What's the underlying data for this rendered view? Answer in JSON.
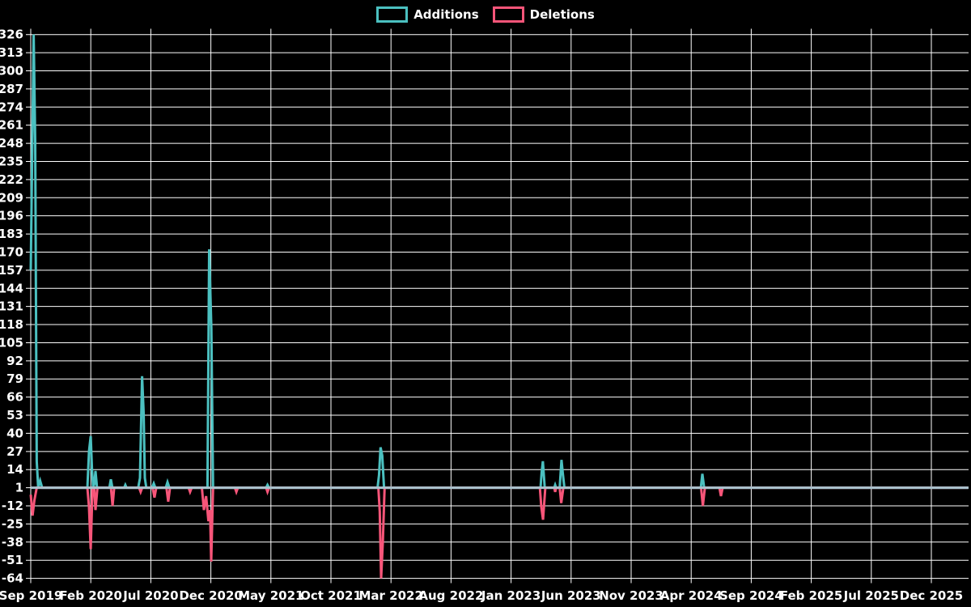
{
  "legend": {
    "additions_label": "Additions",
    "deletions_label": "Deletions"
  },
  "chart_data": {
    "type": "line",
    "title": "",
    "legend_position": "top-center",
    "background_color": "#000000",
    "grid": {
      "show": true,
      "color": "#ffffff"
    },
    "text_color": "#ffffff",
    "baseline_overlay": {
      "value": 1,
      "color": "#a9c3ce"
    },
    "y_axis": {
      "min": -64,
      "max": 326,
      "tick_step": 13,
      "tick_labels": [
        "326",
        "313",
        "300",
        "287",
        "274",
        "261",
        "248",
        "235",
        "222",
        "209",
        "196",
        "183",
        "170",
        "157",
        "144",
        "131",
        "118",
        "105",
        "92",
        "79",
        "66",
        "53",
        "40",
        "27",
        "14",
        "1",
        "-12",
        "-25",
        "-38",
        "-51",
        "-64"
      ]
    },
    "x_axis": {
      "tick_labels": [
        "Sep 2019",
        "Feb 2020",
        "Jul 2020",
        "Dec 2020",
        "May 2021",
        "Oct 2021",
        "Mar 2022",
        "Aug 2022",
        "Jan 2023",
        "Jun 2023",
        "Nov 2023",
        "Apr 2024",
        "Sep 2024",
        "Feb 2025",
        "Jul 2025",
        "Dec 2025"
      ],
      "months_per_tick": 5
    },
    "series": [
      {
        "name": "Additions",
        "color": "#4bc0c0",
        "points": [
          [
            0,
            157
          ],
          [
            0.24,
            326
          ],
          [
            0.37,
            250
          ],
          [
            0.5,
            20
          ],
          [
            0.62,
            1
          ],
          [
            0.78,
            6
          ],
          [
            0.95,
            1
          ],
          [
            4.72,
            1
          ],
          [
            4.85,
            27
          ],
          [
            4.99,
            38
          ],
          [
            5.1,
            14
          ],
          [
            5.2,
            1
          ],
          [
            5.3,
            4
          ],
          [
            5.39,
            13
          ],
          [
            5.52,
            1
          ],
          [
            6.55,
            1
          ],
          [
            6.67,
            7
          ],
          [
            6.8,
            1
          ],
          [
            7.78,
            1
          ],
          [
            7.88,
            3
          ],
          [
            7.98,
            1
          ],
          [
            8.95,
            1
          ],
          [
            9.1,
            8
          ],
          [
            9.27,
            81
          ],
          [
            9.4,
            55
          ],
          [
            9.5,
            8
          ],
          [
            9.62,
            1
          ],
          [
            10.1,
            1
          ],
          [
            10.24,
            4
          ],
          [
            10.38,
            1
          ],
          [
            11.25,
            1
          ],
          [
            11.39,
            5
          ],
          [
            11.54,
            1
          ],
          [
            14.72,
            1
          ],
          [
            14.86,
            172
          ],
          [
            15.04,
            115
          ],
          [
            15.18,
            1
          ],
          [
            19.6,
            1
          ],
          [
            19.72,
            3
          ],
          [
            19.85,
            1
          ],
          [
            28.88,
            1
          ],
          [
            29.0,
            10
          ],
          [
            29.13,
            30
          ],
          [
            29.27,
            24
          ],
          [
            29.42,
            1
          ],
          [
            42.45,
            1
          ],
          [
            42.55,
            12
          ],
          [
            42.65,
            20
          ],
          [
            42.8,
            1
          ],
          [
            43.6,
            1
          ],
          [
            43.67,
            3
          ],
          [
            43.75,
            1
          ],
          [
            44.05,
            1
          ],
          [
            44.2,
            21
          ],
          [
            44.3,
            12
          ],
          [
            44.44,
            1
          ],
          [
            55.8,
            1
          ],
          [
            55.93,
            11
          ],
          [
            56.08,
            1
          ],
          [
            78.05,
            1
          ]
        ]
      },
      {
        "name": "Deletions",
        "color": "#f75579",
        "points": [
          [
            0,
            -4
          ],
          [
            0.15,
            -19
          ],
          [
            0.3,
            -8
          ],
          [
            0.5,
            1
          ],
          [
            4.72,
            1
          ],
          [
            4.85,
            -13
          ],
          [
            4.99,
            -43
          ],
          [
            5.14,
            1
          ],
          [
            5.28,
            1
          ],
          [
            5.39,
            -15
          ],
          [
            5.55,
            1
          ],
          [
            6.68,
            1
          ],
          [
            6.81,
            -12
          ],
          [
            6.95,
            1
          ],
          [
            9.02,
            1
          ],
          [
            9.15,
            -2
          ],
          [
            9.28,
            1
          ],
          [
            10.15,
            1
          ],
          [
            10.3,
            -6
          ],
          [
            10.45,
            1
          ],
          [
            11.3,
            1
          ],
          [
            11.45,
            -9
          ],
          [
            11.6,
            1
          ],
          [
            13.15,
            1
          ],
          [
            13.27,
            -2
          ],
          [
            13.4,
            1
          ],
          [
            14.25,
            1
          ],
          [
            14.42,
            -15
          ],
          [
            14.6,
            -5
          ],
          [
            14.8,
            -23
          ],
          [
            14.93,
            -15
          ],
          [
            15.03,
            -52
          ],
          [
            15.18,
            1
          ],
          [
            17.0,
            1
          ],
          [
            17.12,
            -2
          ],
          [
            17.25,
            1
          ],
          [
            19.6,
            1
          ],
          [
            19.72,
            -2
          ],
          [
            19.85,
            1
          ],
          [
            28.95,
            1
          ],
          [
            29.06,
            -16
          ],
          [
            29.18,
            -64
          ],
          [
            29.32,
            -38
          ],
          [
            29.47,
            1
          ],
          [
            42.4,
            1
          ],
          [
            42.52,
            -13
          ],
          [
            42.66,
            -22
          ],
          [
            42.85,
            1
          ],
          [
            43.6,
            1
          ],
          [
            43.67,
            -2
          ],
          [
            43.75,
            1
          ],
          [
            44.05,
            1
          ],
          [
            44.18,
            -10
          ],
          [
            44.35,
            1
          ],
          [
            55.82,
            1
          ],
          [
            55.97,
            -12
          ],
          [
            56.14,
            1
          ],
          [
            57.35,
            1
          ],
          [
            57.48,
            -5
          ],
          [
            57.62,
            1
          ],
          [
            78.05,
            1
          ]
        ]
      }
    ]
  }
}
